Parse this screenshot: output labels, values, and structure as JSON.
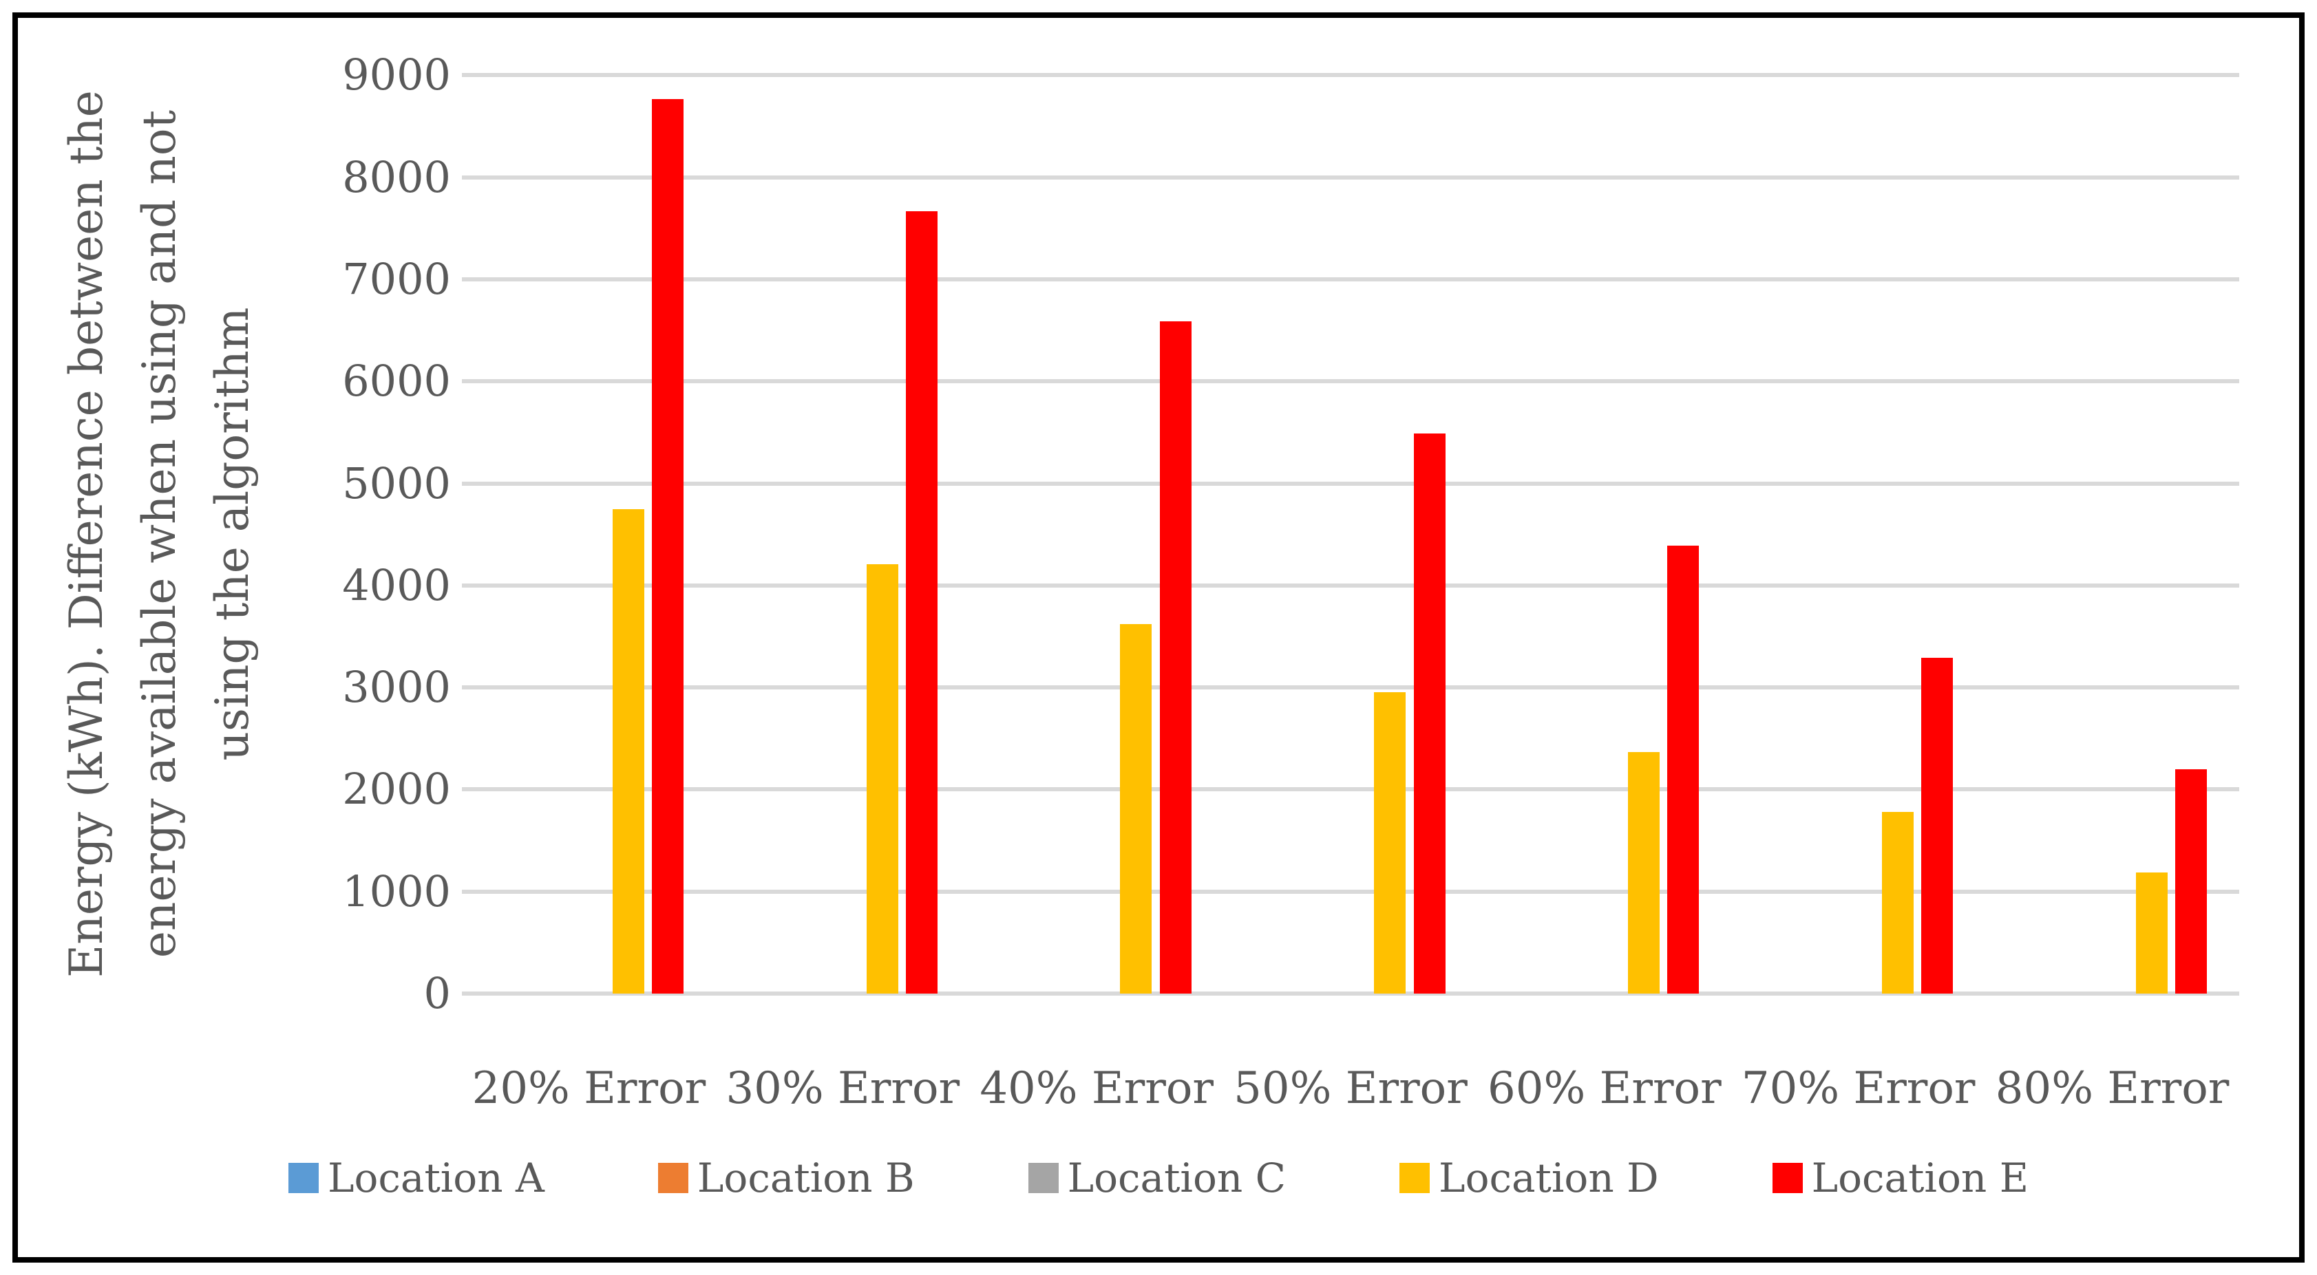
{
  "figure": {
    "background": "#FFFFFF",
    "border_color": "#000000",
    "text_color": "#595959",
    "gridline_color": "#D9D9D9"
  },
  "chart_data": {
    "type": "bar",
    "title": "",
    "categories": [
      "20% Error",
      "30% Error",
      "40% Error",
      "50% Error",
      "60% Error",
      "70% Error",
      "80% Error"
    ],
    "series": [
      {
        "name": "Location A",
        "color": "#5B9BD5",
        "values": [
          0,
          0,
          0,
          0,
          0,
          0,
          0
        ]
      },
      {
        "name": "Location B",
        "color": "#ED7D31",
        "values": [
          0,
          0,
          0,
          0,
          0,
          0,
          0
        ]
      },
      {
        "name": "Location C",
        "color": "#A5A5A5",
        "values": [
          0,
          0,
          0,
          0,
          0,
          0,
          0
        ]
      },
      {
        "name": "Location D",
        "color": "#FFC000",
        "values": [
          4745,
          4210,
          3620,
          2955,
          2370,
          1780,
          1185
        ]
      },
      {
        "name": "Location E",
        "color": "#FF0000",
        "values": [
          8765,
          7670,
          6590,
          5490,
          4390,
          3290,
          2195
        ]
      }
    ],
    "ylabel_lines": [
      "Energy (kWh). Difference between the",
      "energy available when using and not",
      "using the algorithm"
    ],
    "ylabel": "Energy (kWh). Difference between the energy available when using and not using the algorithm",
    "xlabel": "",
    "yticks": [
      0,
      1000,
      2000,
      3000,
      4000,
      5000,
      6000,
      7000,
      8000,
      9000
    ],
    "ylim": [
      0,
      9000
    ],
    "grid": true,
    "legend_position": "bottom"
  }
}
